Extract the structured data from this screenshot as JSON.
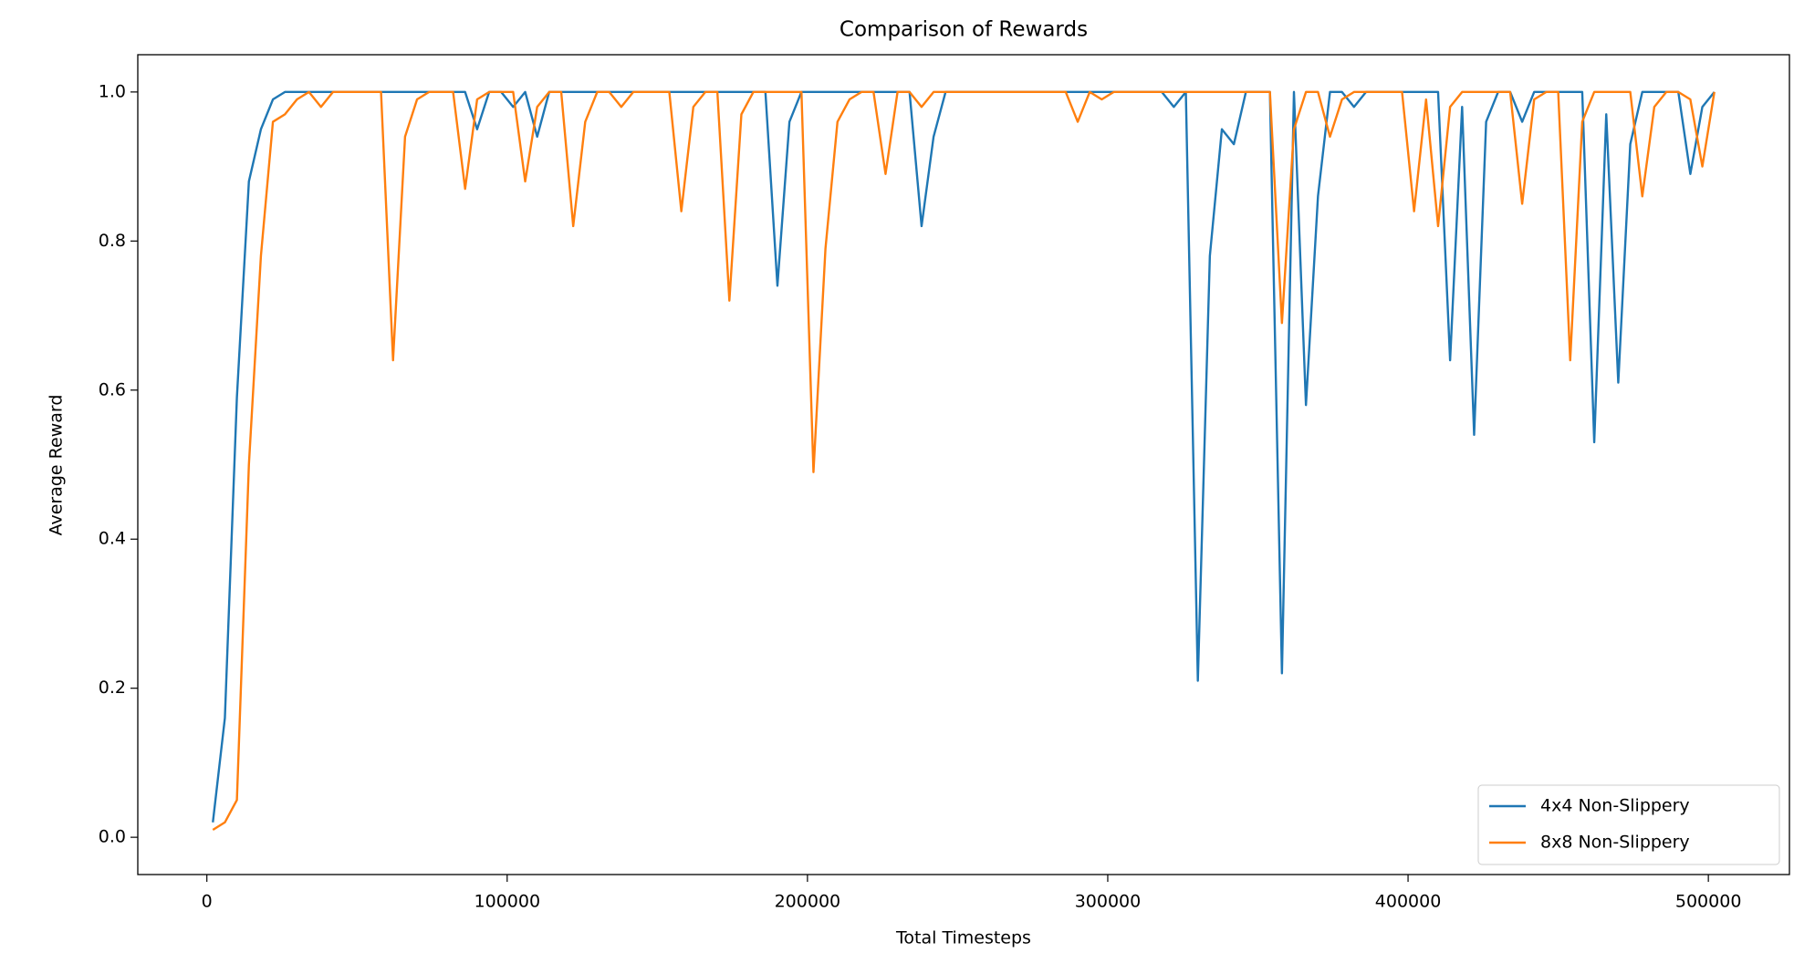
{
  "chart_data": {
    "type": "line",
    "title": "Comparison of Rewards",
    "x_label": "Total Timesteps",
    "y_label": "Average Reward",
    "xlim": [
      -23000,
      527000
    ],
    "ylim": [
      -0.05,
      1.05
    ],
    "xticks": [
      0,
      100000,
      200000,
      300000,
      400000,
      500000
    ],
    "yticks": [
      {
        "value": 0,
        "label": "0.0"
      },
      {
        "value": 0.2,
        "label": "0.2"
      },
      {
        "value": 0.4,
        "label": "0.4"
      },
      {
        "value": 0.6,
        "label": "0.6"
      },
      {
        "value": 0.8,
        "label": "0.8"
      },
      {
        "value": 1,
        "label": "1.0"
      }
    ],
    "grid": false,
    "legend": "lower right",
    "x": [
      2000,
      6000,
      10000,
      14000,
      18000,
      22000,
      26000,
      30000,
      34000,
      38000,
      42000,
      46000,
      50000,
      54000,
      58000,
      62000,
      66000,
      70000,
      74000,
      78000,
      82000,
      86000,
      90000,
      94000,
      98000,
      102000,
      106000,
      110000,
      114000,
      118000,
      122000,
      126000,
      130000,
      134000,
      138000,
      142000,
      146000,
      150000,
      154000,
      158000,
      162000,
      166000,
      170000,
      174000,
      178000,
      182000,
      186000,
      190000,
      194000,
      198000,
      202000,
      206000,
      210000,
      214000,
      218000,
      222000,
      226000,
      230000,
      234000,
      238000,
      242000,
      246000,
      250000,
      254000,
      258000,
      262000,
      266000,
      270000,
      274000,
      278000,
      282000,
      286000,
      290000,
      294000,
      298000,
      302000,
      306000,
      310000,
      314000,
      318000,
      322000,
      326000,
      330000,
      334000,
      338000,
      342000,
      346000,
      350000,
      354000,
      358000,
      362000,
      366000,
      370000,
      374000,
      378000,
      382000,
      386000,
      390000,
      394000,
      398000,
      402000,
      406000,
      410000,
      414000,
      418000,
      422000,
      426000,
      430000,
      434000,
      438000,
      442000,
      446000,
      450000,
      454000,
      458000,
      462000,
      466000,
      470000,
      474000,
      478000,
      482000,
      486000,
      490000,
      494000,
      498000,
      502000
    ],
    "series": [
      {
        "name": "4x4 Non-Slippery",
        "color": "#1f77b4",
        "values": [
          0.02,
          0.16,
          0.59,
          0.88,
          0.95,
          0.99,
          1,
          1,
          1,
          1,
          1,
          1,
          1,
          1,
          1,
          1,
          1,
          1,
          1,
          1,
          1,
          1,
          0.95,
          1,
          1,
          0.98,
          1,
          0.94,
          1,
          1,
          1,
          1,
          1,
          1,
          1,
          1,
          1,
          1,
          1,
          1,
          1,
          1,
          1,
          1,
          1,
          1,
          1,
          0.74,
          0.96,
          1,
          1,
          1,
          1,
          1,
          1,
          1,
          1,
          1,
          1,
          0.82,
          0.94,
          1,
          1,
          1,
          1,
          1,
          1,
          1,
          1,
          1,
          1,
          1,
          1,
          1,
          1,
          1,
          1,
          1,
          1,
          1,
          0.98,
          1,
          0.21,
          0.78,
          0.95,
          0.93,
          1,
          1,
          1,
          0.22,
          1,
          0.58,
          0.86,
          1,
          1,
          0.98,
          1,
          1,
          1,
          1,
          1,
          1,
          1,
          0.64,
          0.98,
          0.54,
          0.96,
          1,
          1,
          0.96,
          1,
          1,
          1,
          1,
          1,
          0.53,
          0.97,
          0.61,
          0.93,
          1,
          1,
          1,
          1,
          0.89,
          0.98,
          1
        ]
      },
      {
        "name": "8x8 Non-Slippery",
        "color": "#ff7f0e",
        "values": [
          0.01,
          0.02,
          0.05,
          0.5,
          0.78,
          0.96,
          0.97,
          0.99,
          1,
          0.98,
          1,
          1,
          1,
          1,
          1,
          0.64,
          0.94,
          0.99,
          1,
          1,
          1,
          0.87,
          0.99,
          1,
          1,
          1,
          0.88,
          0.98,
          1,
          1,
          0.82,
          0.96,
          1,
          1,
          0.98,
          1,
          1,
          1,
          1,
          0.84,
          0.98,
          1,
          1,
          0.72,
          0.97,
          1,
          1,
          1,
          1,
          1,
          0.49,
          0.79,
          0.96,
          0.99,
          1,
          1,
          0.89,
          1,
          1,
          0.98,
          1,
          1,
          1,
          1,
          1,
          1,
          1,
          1,
          1,
          1,
          1,
          1,
          0.96,
          1,
          0.99,
          1,
          1,
          1,
          1,
          1,
          1,
          1,
          1,
          1,
          1,
          1,
          1,
          1,
          1,
          0.69,
          0.95,
          1,
          1,
          0.94,
          0.99,
          1,
          1,
          1,
          1,
          1,
          0.84,
          0.99,
          0.82,
          0.98,
          1,
          1,
          1,
          1,
          1,
          0.85,
          0.99,
          1,
          1,
          0.64,
          0.96,
          1,
          1,
          1,
          1,
          0.86,
          0.98,
          1,
          1,
          0.99,
          0.9,
          1
        ]
      }
    ]
  }
}
